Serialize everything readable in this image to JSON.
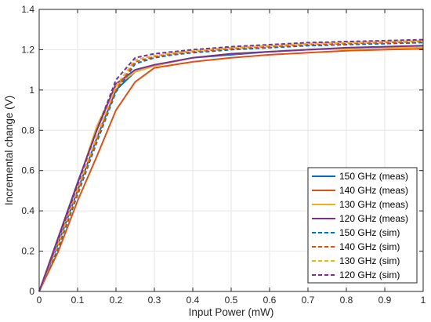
{
  "chart_data": {
    "type": "line",
    "title": "",
    "xlabel": "Input Power (mW)",
    "ylabel": "Incremental change (V)",
    "xlim": [
      0,
      1
    ],
    "ylim": [
      0,
      1.4
    ],
    "xticks": [
      0,
      0.1,
      0.2,
      0.3,
      0.4,
      0.5,
      0.6,
      0.7,
      0.8,
      0.9,
      1
    ],
    "yticks": [
      0,
      0.2,
      0.4,
      0.6,
      0.8,
      1,
      1.2,
      1.4
    ],
    "xtick_labels": [
      "0",
      "0.1",
      "0.2",
      "0.3",
      "0.4",
      "0.5",
      "0.6",
      "0.7",
      "0.8",
      "0.9",
      "1"
    ],
    "ytick_labels": [
      "0",
      "0.2",
      "0.4",
      "0.6",
      "0.8",
      "1",
      "1.2",
      "1.4"
    ],
    "grid": true,
    "legend_position": "bottom-right",
    "series": [
      {
        "name": "150 GHz (meas)",
        "color": "#0072BD",
        "dashed": false,
        "x": [
          0,
          0.05,
          0.1,
          0.15,
          0.2,
          0.25,
          0.3,
          0.4,
          0.5,
          0.6,
          0.7,
          0.8,
          0.9,
          1
        ],
        "y": [
          0,
          0.24,
          0.5,
          0.76,
          1.0,
          1.09,
          1.12,
          1.16,
          1.175,
          1.19,
          1.2,
          1.205,
          1.21,
          1.215
        ]
      },
      {
        "name": "140 GHz (meas)",
        "color": "#D95319",
        "dashed": false,
        "x": [
          0,
          0.05,
          0.1,
          0.15,
          0.2,
          0.25,
          0.3,
          0.4,
          0.5,
          0.6,
          0.7,
          0.8,
          0.9,
          1
        ],
        "y": [
          0,
          0.2,
          0.45,
          0.67,
          0.9,
          1.04,
          1.11,
          1.14,
          1.16,
          1.175,
          1.185,
          1.195,
          1.2,
          1.205
        ]
      },
      {
        "name": "130 GHz (meas)",
        "color": "#EDB120",
        "dashed": false,
        "x": [
          0,
          0.05,
          0.1,
          0.15,
          0.2,
          0.25,
          0.3,
          0.4,
          0.5,
          0.6,
          0.7,
          0.8,
          0.9,
          1
        ],
        "y": [
          0,
          0.26,
          0.53,
          0.82,
          1.02,
          1.09,
          1.12,
          1.16,
          1.18,
          1.19,
          1.2,
          1.205,
          1.21,
          1.215
        ]
      },
      {
        "name": "120 GHz (meas)",
        "color": "#7E2F8E",
        "dashed": false,
        "x": [
          0,
          0.05,
          0.1,
          0.15,
          0.2,
          0.25,
          0.3,
          0.4,
          0.5,
          0.6,
          0.7,
          0.8,
          0.9,
          1
        ],
        "y": [
          0,
          0.27,
          0.54,
          0.8,
          1.03,
          1.1,
          1.125,
          1.16,
          1.18,
          1.19,
          1.2,
          1.21,
          1.215,
          1.22
        ]
      },
      {
        "name": "150 GHz (sim)",
        "color": "#0072BD",
        "dashed": true,
        "x": [
          0,
          0.05,
          0.1,
          0.15,
          0.2,
          0.25,
          0.3,
          0.35,
          0.4,
          0.5,
          0.6,
          0.7,
          0.8,
          0.9,
          1
        ],
        "y": [
          0,
          0.22,
          0.48,
          0.74,
          0.99,
          1.13,
          1.16,
          1.175,
          1.185,
          1.2,
          1.21,
          1.22,
          1.225,
          1.23,
          1.235
        ]
      },
      {
        "name": "140 GHz (sim)",
        "color": "#D95319",
        "dashed": true,
        "x": [
          0,
          0.05,
          0.1,
          0.15,
          0.2,
          0.25,
          0.3,
          0.35,
          0.4,
          0.5,
          0.6,
          0.7,
          0.8,
          0.9,
          1
        ],
        "y": [
          0,
          0.23,
          0.49,
          0.75,
          1.0,
          1.14,
          1.165,
          1.18,
          1.19,
          1.205,
          1.215,
          1.225,
          1.23,
          1.235,
          1.24
        ]
      },
      {
        "name": "130 GHz (sim)",
        "color": "#EDB120",
        "dashed": true,
        "x": [
          0,
          0.05,
          0.1,
          0.15,
          0.2,
          0.25,
          0.3,
          0.35,
          0.4,
          0.5,
          0.6,
          0.7,
          0.8,
          0.9,
          1
        ],
        "y": [
          0,
          0.24,
          0.51,
          0.77,
          1.02,
          1.15,
          1.17,
          1.185,
          1.195,
          1.21,
          1.22,
          1.23,
          1.235,
          1.24,
          1.245
        ]
      },
      {
        "name": "120 GHz (sim)",
        "color": "#7E2F8E",
        "dashed": true,
        "x": [
          0,
          0.05,
          0.1,
          0.15,
          0.2,
          0.25,
          0.3,
          0.35,
          0.4,
          0.5,
          0.6,
          0.7,
          0.8,
          0.9,
          1
        ],
        "y": [
          0,
          0.26,
          0.53,
          0.8,
          1.05,
          1.16,
          1.18,
          1.19,
          1.2,
          1.215,
          1.225,
          1.235,
          1.24,
          1.245,
          1.25
        ]
      }
    ]
  }
}
